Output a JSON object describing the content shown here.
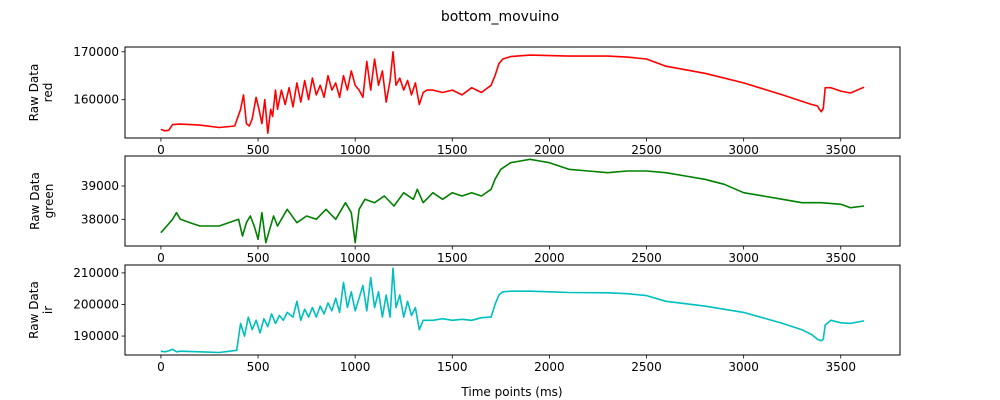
{
  "figure": {
    "title": "bottom_movuino",
    "xlabel": "Time points (ms)"
  },
  "chart_data": [
    {
      "type": "line",
      "ylabel": [
        "Raw Data",
        "red"
      ],
      "color": "#ff0000",
      "xlim": [
        -185,
        3805
      ],
      "ylim": [
        152000,
        171000
      ],
      "xticks": [
        0,
        500,
        1000,
        1500,
        2000,
        2500,
        3000,
        3500
      ],
      "yticks": [
        160000,
        170000
      ],
      "series": [
        {
          "x": [
            0,
            20,
            40,
            60,
            100,
            200,
            300,
            380,
            410,
            425,
            440,
            455,
            470,
            490,
            505,
            520,
            535,
            550,
            565,
            575,
            590,
            600,
            620,
            640,
            660,
            680,
            700,
            720,
            740,
            760,
            780,
            800,
            820,
            840,
            860,
            880,
            900,
            920,
            940,
            960,
            980,
            1000,
            1020,
            1040,
            1060,
            1080,
            1100,
            1120,
            1140,
            1160,
            1180,
            1195,
            1210,
            1230,
            1250,
            1270,
            1290,
            1310,
            1330,
            1350,
            1370,
            1400,
            1450,
            1500,
            1550,
            1600,
            1650,
            1700,
            1720,
            1740,
            1760,
            1800,
            1900,
            2000,
            2100,
            2300,
            2400,
            2500,
            2600,
            2800,
            3000,
            3200,
            3350,
            3380,
            3390,
            3400,
            3410,
            3420,
            3450,
            3500,
            3550,
            3620
          ],
          "y": [
            153800,
            153500,
            153600,
            154800,
            154900,
            154700,
            154200,
            154500,
            158000,
            161000,
            155000,
            154500,
            156000,
            160500,
            158000,
            155000,
            160000,
            153000,
            158000,
            156500,
            162000,
            158000,
            162000,
            159000,
            162500,
            158500,
            163500,
            159500,
            164000,
            160000,
            164500,
            161000,
            163000,
            160500,
            165000,
            162000,
            163500,
            160500,
            165000,
            162000,
            166000,
            163000,
            162000,
            160500,
            168000,
            162000,
            168500,
            163000,
            166000,
            159500,
            164000,
            170000,
            163000,
            164500,
            162000,
            164000,
            161000,
            163500,
            159000,
            161500,
            162000,
            162000,
            161500,
            162000,
            161000,
            162500,
            161500,
            163000,
            165000,
            167500,
            168500,
            169000,
            169300,
            169200,
            169100,
            169100,
            168900,
            168500,
            167000,
            165500,
            163500,
            161000,
            159000,
            158700,
            158000,
            157500,
            158200,
            162500,
            162500,
            161800,
            161400,
            162600
          ]
        }
      ]
    },
    {
      "type": "line",
      "ylabel": [
        "Raw Data",
        "green"
      ],
      "color": "#008000",
      "xlim": [
        -185,
        3805
      ],
      "ylim": [
        37200,
        39900
      ],
      "xticks": [
        0,
        500,
        1000,
        1500,
        2000,
        2500,
        3000,
        3500
      ],
      "yticks": [
        38000,
        39000
      ],
      "series": [
        {
          "x": [
            0,
            30,
            60,
            80,
            100,
            150,
            200,
            300,
            400,
            420,
            440,
            460,
            480,
            500,
            520,
            540,
            560,
            580,
            600,
            650,
            700,
            750,
            800,
            850,
            900,
            950,
            980,
            1000,
            1020,
            1050,
            1100,
            1150,
            1200,
            1250,
            1300,
            1320,
            1350,
            1400,
            1450,
            1500,
            1550,
            1600,
            1650,
            1700,
            1720,
            1750,
            1800,
            1850,
            1900,
            1950,
            2000,
            2050,
            2100,
            2200,
            2300,
            2400,
            2500,
            2600,
            2700,
            2800,
            2900,
            3000,
            3100,
            3200,
            3300,
            3400,
            3500,
            3550,
            3620
          ],
          "y": [
            37600,
            37800,
            38000,
            38200,
            38000,
            37900,
            37800,
            37800,
            38000,
            37500,
            37900,
            38100,
            37800,
            37400,
            38200,
            37300,
            37700,
            38100,
            37800,
            38300,
            37900,
            38100,
            38000,
            38300,
            38000,
            38500,
            38200,
            37300,
            38300,
            38600,
            38500,
            38700,
            38400,
            38800,
            38600,
            38900,
            38500,
            38800,
            38600,
            38800,
            38700,
            38800,
            38700,
            38900,
            39200,
            39500,
            39700,
            39750,
            39800,
            39750,
            39700,
            39600,
            39500,
            39450,
            39400,
            39450,
            39450,
            39400,
            39300,
            39200,
            39050,
            38800,
            38700,
            38600,
            38500,
            38500,
            38450,
            38350,
            38400
          ]
        }
      ]
    },
    {
      "type": "line",
      "ylabel": [
        "Raw Data",
        "ir"
      ],
      "color": "#00bfbf",
      "xlim": [
        -185,
        3805
      ],
      "ylim": [
        184000,
        212500
      ],
      "xticks": [
        0,
        500,
        1000,
        1500,
        2000,
        2500,
        3000,
        3500
      ],
      "yticks": [
        190000,
        200000,
        210000
      ],
      "series": [
        {
          "x": [
            0,
            20,
            40,
            60,
            80,
            100,
            200,
            300,
            390,
            410,
            430,
            450,
            470,
            490,
            510,
            530,
            550,
            570,
            590,
            610,
            630,
            650,
            680,
            700,
            720,
            740,
            760,
            780,
            800,
            820,
            840,
            860,
            880,
            900,
            920,
            940,
            960,
            980,
            1000,
            1020,
            1040,
            1060,
            1080,
            1100,
            1120,
            1140,
            1160,
            1180,
            1195,
            1210,
            1230,
            1250,
            1270,
            1290,
            1310,
            1330,
            1350,
            1400,
            1450,
            1500,
            1550,
            1600,
            1650,
            1700,
            1720,
            1740,
            1760,
            1800,
            1900,
            2000,
            2100,
            2300,
            2400,
            2500,
            2600,
            2800,
            3000,
            3200,
            3300,
            3350,
            3380,
            3400,
            3410,
            3420,
            3450,
            3500,
            3550,
            3620
          ],
          "y": [
            185200,
            185000,
            185300,
            185800,
            185000,
            185200,
            185000,
            184800,
            185500,
            194000,
            190000,
            196000,
            192000,
            195000,
            191000,
            195500,
            193000,
            197000,
            194000,
            196500,
            195000,
            197500,
            196000,
            201000,
            195000,
            198500,
            196000,
            199000,
            196000,
            199500,
            197000,
            200500,
            198000,
            202000,
            197500,
            207000,
            199000,
            204000,
            198000,
            202000,
            206000,
            198000,
            208500,
            199000,
            204000,
            196000,
            203000,
            196000,
            211500,
            199000,
            203000,
            196000,
            201000,
            196500,
            199000,
            192000,
            195000,
            195000,
            195500,
            195000,
            195300,
            195000,
            195800,
            196000,
            200000,
            203000,
            204000,
            204200,
            204200,
            204000,
            203800,
            203700,
            203400,
            202800,
            201000,
            199500,
            197500,
            194000,
            192000,
            190500,
            189000,
            188500,
            189000,
            193500,
            195000,
            194200,
            194000,
            194800
          ]
        }
      ]
    }
  ]
}
